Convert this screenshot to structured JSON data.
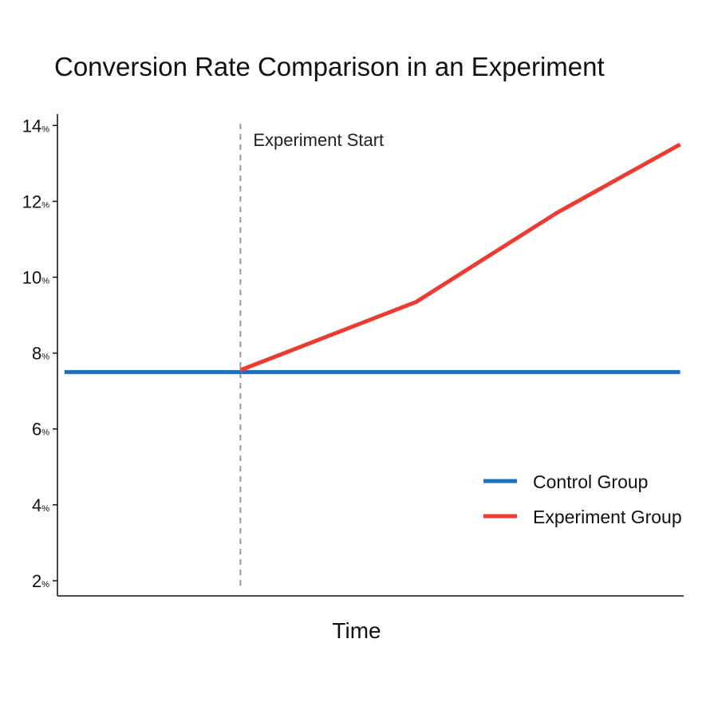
{
  "chart_data": {
    "type": "line",
    "title": "Conversion Rate Comparison in an Experiment",
    "xlabel": "Time",
    "ylabel": "",
    "ylim": [
      1.6,
      14.3
    ],
    "xlim": [
      -0.04,
      3.52
    ],
    "y_ticks": [
      {
        "value": 14,
        "number": "14",
        "unit": "%"
      },
      {
        "value": 12,
        "number": "12",
        "unit": "%"
      },
      {
        "value": 10,
        "number": "10",
        "unit": "%"
      },
      {
        "value": 8,
        "number": "8",
        "unit": "%"
      },
      {
        "value": 6,
        "number": "6",
        "unit": "%"
      },
      {
        "value": 4,
        "number": "4",
        "unit": "%"
      },
      {
        "value": 2,
        "number": "2",
        "unit": "%"
      }
    ],
    "series": [
      {
        "name": "Control Group",
        "color": "#1f6fbd",
        "x": [
          0,
          3.5
        ],
        "values": [
          7.5,
          7.5
        ]
      },
      {
        "name": "Experiment Group",
        "color": "#eb3b33",
        "x": [
          1,
          2,
          2.8,
          3.5
        ],
        "values": [
          7.55,
          9.35,
          11.7,
          13.5
        ]
      }
    ],
    "annotation": {
      "label": "Experiment Start",
      "x": 1,
      "color": "#9a9a9a"
    },
    "grid": false,
    "legend_position": "bottom-right"
  }
}
